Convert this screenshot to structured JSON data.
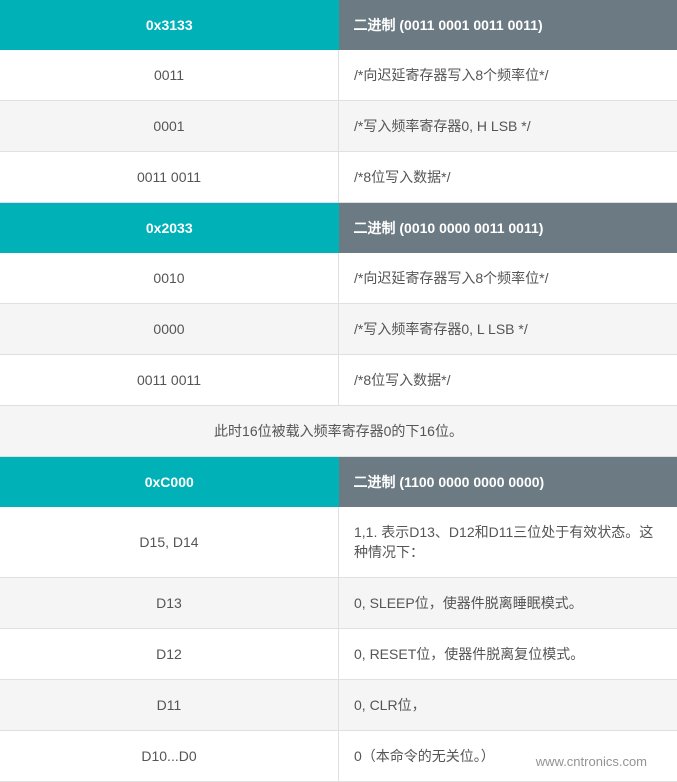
{
  "sections": [
    {
      "header": {
        "left": "0x3133",
        "right": "二进制 (0011 0001 0011 0011)"
      },
      "rows": [
        {
          "left": "0011",
          "right": "/*向迟延寄存器写入8个频率位*/",
          "shade": "light"
        },
        {
          "left": "0001",
          "right": "/*写入频率寄存器0, H LSB */",
          "shade": "shade"
        },
        {
          "left": "0011 0011",
          "right": "/*8位写入数据*/",
          "shade": "light"
        }
      ]
    },
    {
      "header": {
        "left": "0x2033",
        "right": "二进制 (0010 0000 0011 0011)"
      },
      "rows": [
        {
          "left": "0010",
          "right": "/*向迟延寄存器写入8个频率位*/",
          "shade": "light"
        },
        {
          "left": "0000",
          "right": "/*写入频率寄存器0, L LSB */",
          "shade": "shade"
        },
        {
          "left": "0011 0011",
          "right": "/*8位写入数据*/",
          "shade": "light"
        }
      ]
    }
  ],
  "caption": "此时16位被载入频率寄存器0的下16位。",
  "section3": {
    "header": {
      "left": "0xC000",
      "right": "二进制 (1100 0000 0000 0000)"
    },
    "rows": [
      {
        "left": "D15, D14",
        "right": "1,1. 表示D13、D12和D11三位处于有效状态。这种情况下：",
        "shade": "light"
      },
      {
        "left": "D13",
        "right": "0, SLEEP位，使器件脱离睡眠模式。",
        "shade": "shade"
      },
      {
        "left": "D12",
        "right": "0, RESET位，使器件脱离复位模式。",
        "shade": "light"
      },
      {
        "left": "D11",
        "right": "0, CLR位，",
        "shade": "shade"
      },
      {
        "left": "D10...D0",
        "right": "0（本命令的无关位。）",
        "shade": "light"
      }
    ]
  },
  "watermark": "www.cntronics.com"
}
